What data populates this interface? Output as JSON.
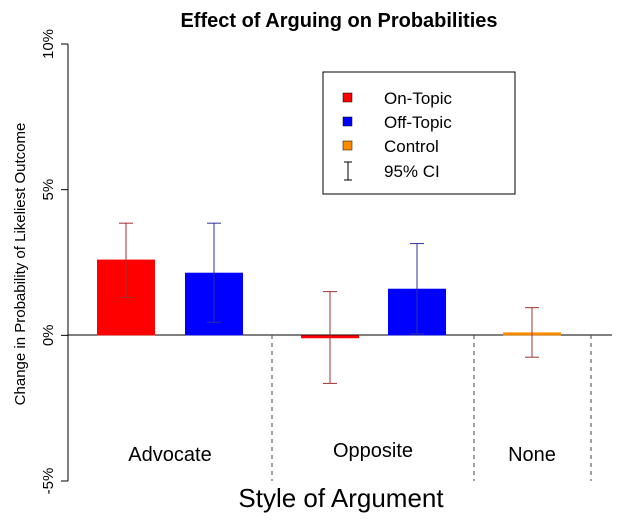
{
  "chart_data": {
    "type": "bar",
    "title": "Effect of Arguing on Probabilities",
    "xlabel": "Style of Argument",
    "ylabel": "Change in Probability of Likeliest Outcome",
    "ylim": [
      -5,
      10
    ],
    "y_ticks": [
      "-5%",
      "0%",
      "5%",
      "10%"
    ],
    "y_tick_values": [
      -5,
      0,
      5,
      10
    ],
    "groups": [
      "Advocate",
      "Opposite",
      "None"
    ],
    "bars": [
      {
        "group": "Advocate",
        "series": "On-Topic",
        "value": 2.6,
        "ci_low": 1.3,
        "ci_high": 3.85,
        "color": "#ff0000",
        "ci_color": "#a03030"
      },
      {
        "group": "Advocate",
        "series": "Off-Topic",
        "value": 2.15,
        "ci_low": 0.45,
        "ci_high": 3.85,
        "color": "#0000ff",
        "ci_color": "#3030a0"
      },
      {
        "group": "Opposite",
        "series": "On-Topic",
        "value": -0.1,
        "ci_low": -1.65,
        "ci_high": 1.5,
        "color": "#ff0000",
        "ci_color": "#a03030"
      },
      {
        "group": "Opposite",
        "series": "Off-Topic",
        "value": 1.6,
        "ci_low": 0.05,
        "ci_high": 3.15,
        "color": "#0000ff",
        "ci_color": "#3030a0"
      },
      {
        "group": "None",
        "series": "Control",
        "value": 0.1,
        "ci_low": -0.75,
        "ci_high": 0.95,
        "color": "#ff8c00",
        "ci_color": "#a03030"
      }
    ],
    "legend": {
      "position": "top-right",
      "items": [
        {
          "label": "On-Topic",
          "color": "#ff0000",
          "kind": "box"
        },
        {
          "label": "Off-Topic",
          "color": "#0000ff",
          "kind": "box"
        },
        {
          "label": "Control",
          "color": "#ff8c00",
          "kind": "box"
        },
        {
          "label": "95% CI",
          "color": "#000000",
          "kind": "errorbar"
        }
      ]
    },
    "grid": false
  }
}
